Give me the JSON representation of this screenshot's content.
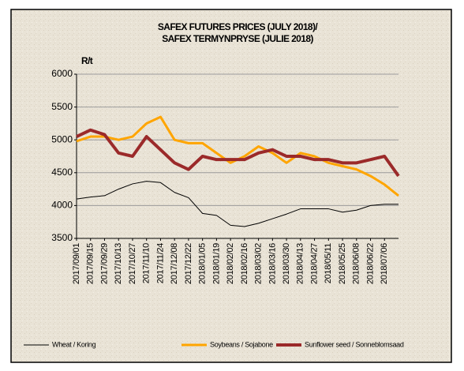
{
  "chart_data": {
    "type": "line",
    "title": [
      "SAFEX FUTURES PRICES (JULY 2018)/",
      "SAFEX TERMYNPRYSE (JULIE 2018)"
    ],
    "y_label": "R/t",
    "categories": [
      "2017/09/01",
      "2017/09/15",
      "2017/09/29",
      "2017/10/13",
      "2017/10/27",
      "2017/11/10",
      "2017/11/24",
      "2017/12/08",
      "2017/12/22",
      "2018/01/05",
      "2018/01/19",
      "2018/02/02",
      "2018/02/16",
      "2018/03/02",
      "2018/03/16",
      "2018/03/30",
      "2018/04/13",
      "2018/04/27",
      "2018/05/11",
      "2018/05/25",
      "2018/06/08",
      "2018/06/22",
      "2018/07/06",
      null
    ],
    "series": [
      {
        "name": "Wheat / Koring",
        "color": "#000000",
        "width": 1,
        "values": [
          4100,
          4130,
          4150,
          4250,
          4330,
          4370,
          4350,
          4200,
          4120,
          3880,
          3850,
          3700,
          3680,
          3730,
          3800,
          3870,
          3950,
          3950,
          3950,
          3900,
          3930,
          4000,
          4020,
          4020
        ]
      },
      {
        "name": "Soybeans / Sojabone",
        "color": "#ffa500",
        "width": 3,
        "values": [
          4980,
          5050,
          5050,
          5000,
          5050,
          5250,
          5350,
          5000,
          4950,
          4950,
          4800,
          4650,
          4750,
          4900,
          4800,
          4650,
          4800,
          4750,
          4650,
          4600,
          4550,
          4450,
          4320,
          4150
        ]
      },
      {
        "name": "Sunflower seed / Sonneblomsaad",
        "color": "#9b2a2a",
        "width": 4,
        "values": [
          5050,
          5150,
          5080,
          4800,
          4750,
          5050,
          4850,
          4650,
          4550,
          4750,
          4700,
          4700,
          4700,
          4800,
          4850,
          4750,
          4750,
          4700,
          4700,
          4650,
          4650,
          4700,
          4750,
          4450
        ]
      }
    ],
    "ylim": [
      3500,
      6000
    ],
    "yticks": [
      3500,
      4000,
      4500,
      5000,
      5500,
      6000
    ],
    "grid": true,
    "legend": "bottom"
  }
}
